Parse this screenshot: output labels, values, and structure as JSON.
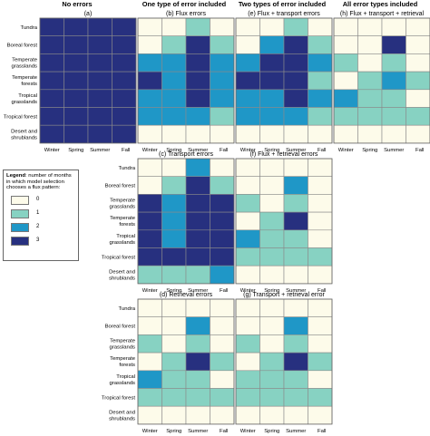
{
  "headers": {
    "col1": "No errors",
    "col2": "One type of error included",
    "col3": "Two types of error included",
    "col4": "All error types included"
  },
  "row_labels": [
    [
      "Tundra"
    ],
    [
      "Boreal forest"
    ],
    [
      "Temperate",
      "grasslands"
    ],
    [
      "Temperate",
      "forests"
    ],
    [
      "Tropical",
      "grasslands"
    ],
    [
      "Tropical forest"
    ],
    [
      "Desert and",
      "shrublands"
    ]
  ],
  "seasons": [
    "Winter",
    "Spring",
    "Summer",
    "Fall"
  ],
  "legend": {
    "title_bold": "Legend",
    "title_rest": ": number of months in which model selection chooses a flux pattern:",
    "items": [
      {
        "label": "0",
        "color": "#fdfbea"
      },
      {
        "label": "1",
        "color": "#87d2c2"
      },
      {
        "label": "2",
        "color": "#1f97c7"
      },
      {
        "label": "3",
        "color": "#27307f"
      }
    ]
  },
  "chart_data": [
    {
      "type": "heatmap",
      "title": "(a)",
      "x": [
        "Winter",
        "Spring",
        "Summer",
        "Fall"
      ],
      "y": [
        "Tundra",
        "Boreal forest",
        "Temperate grasslands",
        "Temperate forests",
        "Tropical grasslands",
        "Tropical forest",
        "Desert and shrublands"
      ],
      "values": [
        [
          3,
          3,
          3,
          3
        ],
        [
          3,
          3,
          3,
          3
        ],
        [
          3,
          3,
          3,
          3
        ],
        [
          3,
          3,
          3,
          3
        ],
        [
          3,
          3,
          3,
          3
        ],
        [
          3,
          3,
          3,
          3
        ],
        [
          3,
          3,
          3,
          3
        ]
      ]
    },
    {
      "type": "heatmap",
      "title": "(b) Flux errors",
      "x": [
        "Winter",
        "Spring",
        "Summer",
        "Fall"
      ],
      "y": [
        "Tundra",
        "Boreal forest",
        "Temperate grasslands",
        "Temperate forests",
        "Tropical grasslands",
        "Tropical forest",
        "Desert and shrublands"
      ],
      "values": [
        [
          0,
          0,
          1,
          0
        ],
        [
          0,
          1,
          3,
          1
        ],
        [
          2,
          2,
          3,
          2
        ],
        [
          3,
          2,
          3,
          2
        ],
        [
          2,
          2,
          3,
          2
        ],
        [
          2,
          2,
          2,
          1
        ],
        [
          0,
          0,
          0,
          0
        ]
      ]
    },
    {
      "type": "heatmap",
      "title": "(e) Flux + transport errors",
      "x": [
        "Winter",
        "Spring",
        "Summer",
        "Fall"
      ],
      "y": [
        "Tundra",
        "Boreal forest",
        "Temperate grasslands",
        "Temperate forests",
        "Tropical grasslands",
        "Tropical forest",
        "Desert and shrublands"
      ],
      "values": [
        [
          0,
          0,
          1,
          0
        ],
        [
          0,
          2,
          3,
          1
        ],
        [
          2,
          3,
          3,
          2
        ],
        [
          3,
          3,
          3,
          1
        ],
        [
          2,
          2,
          3,
          2
        ],
        [
          2,
          2,
          2,
          1
        ],
        [
          0,
          0,
          0,
          0
        ]
      ]
    },
    {
      "type": "heatmap",
      "title": "(h) Flux + transport + retrieval",
      "x": [
        "Winter",
        "Spring",
        "Summer",
        "Fall"
      ],
      "y": [
        "Tundra",
        "Boreal forest",
        "Temperate grasslands",
        "Temperate forests",
        "Tropical grasslands",
        "Tropical forest",
        "Desert and shrublands"
      ],
      "values": [
        [
          0,
          0,
          0,
          0
        ],
        [
          0,
          0,
          3,
          0
        ],
        [
          1,
          0,
          1,
          0
        ],
        [
          0,
          1,
          2,
          1
        ],
        [
          2,
          1,
          1,
          0
        ],
        [
          1,
          1,
          1,
          1
        ],
        [
          0,
          0,
          0,
          0
        ]
      ]
    },
    {
      "type": "heatmap",
      "title": "(c) Transport errors",
      "x": [
        "Winter",
        "Spring",
        "Summer",
        "Fall"
      ],
      "y": [
        "Tundra",
        "Boreal forest",
        "Temperate grasslands",
        "Temperate forests",
        "Tropical grasslands",
        "Tropical forest",
        "Desert and shrublands"
      ],
      "values": [
        [
          0,
          0,
          2,
          0
        ],
        [
          0,
          1,
          3,
          1
        ],
        [
          3,
          2,
          3,
          3
        ],
        [
          3,
          2,
          3,
          3
        ],
        [
          3,
          2,
          3,
          3
        ],
        [
          3,
          3,
          3,
          3
        ],
        [
          1,
          1,
          1,
          2
        ]
      ]
    },
    {
      "type": "heatmap",
      "title": "(f) Flux + retrieval errors",
      "x": [
        "Winter",
        "Spring",
        "Summer",
        "Fall"
      ],
      "y": [
        "Tundra",
        "Boreal forest",
        "Temperate grasslands",
        "Temperate forests",
        "Tropical grasslands",
        "Tropical forest",
        "Desert and shrublands"
      ],
      "values": [
        [
          0,
          0,
          0,
          0
        ],
        [
          0,
          0,
          2,
          0
        ],
        [
          1,
          0,
          1,
          0
        ],
        [
          0,
          1,
          3,
          0
        ],
        [
          2,
          1,
          1,
          0
        ],
        [
          1,
          1,
          1,
          1
        ],
        [
          0,
          0,
          0,
          0
        ]
      ]
    },
    {
      "type": "heatmap",
      "title": "(d) Retrieval errors",
      "x": [
        "Winter",
        "Spring",
        "Summer",
        "Fall"
      ],
      "y": [
        "Tundra",
        "Boreal forest",
        "Temperate grasslands",
        "Temperate forests",
        "Tropical grasslands",
        "Tropical forest",
        "Desert and shrublands"
      ],
      "values": [
        [
          0,
          0,
          0,
          0
        ],
        [
          0,
          0,
          2,
          0
        ],
        [
          1,
          0,
          1,
          0
        ],
        [
          0,
          1,
          3,
          1
        ],
        [
          2,
          1,
          1,
          0
        ],
        [
          1,
          1,
          1,
          1
        ],
        [
          0,
          0,
          0,
          0
        ]
      ]
    },
    {
      "type": "heatmap",
      "title": "(g) Transport + retrieval error",
      "x": [
        "Winter",
        "Spring",
        "Summer",
        "Fall"
      ],
      "y": [
        "Tundra",
        "Boreal forest",
        "Temperate grasslands",
        "Temperate forests",
        "Tropical grasslands",
        "Tropical forest",
        "Desert and shrublands"
      ],
      "values": [
        [
          0,
          0,
          0,
          0
        ],
        [
          0,
          0,
          2,
          0
        ],
        [
          1,
          0,
          1,
          0
        ],
        [
          0,
          1,
          3,
          1
        ],
        [
          1,
          1,
          1,
          0
        ],
        [
          1,
          1,
          1,
          1
        ],
        [
          0,
          0,
          0,
          0
        ]
      ]
    }
  ]
}
